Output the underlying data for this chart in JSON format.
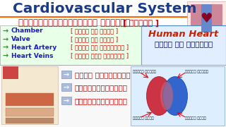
{
  "bg_color": "#f0f0f0",
  "title1": "Cardiovascular System",
  "title1_color": "#1a3a8a",
  "title2": "कार्डियोवैस्कुलर सिस्टम",
  "title2_color": "#cc0000",
  "hindi_tag": "[ हिंदी ]",
  "hindi_tag_color": "#cc0000",
  "items_en": [
    "Chamber",
    "Valve",
    "Heart Artery",
    "Heart Veins"
  ],
  "items_hi": [
    "हृदय के कक्ष ]",
    "हृदय के कपाट ]",
    "हृदय की धामनिया ]",
    "हृदय में सिराये ]"
  ],
  "arrow_color": "#2e8b2e",
  "item_en_color": "#1a1acc",
  "item_hi_color": "#cc0000",
  "left_panel_bg": "#e8ffe8",
  "left_panel_border": "#aaaaaa",
  "right_panel_bg": "#e0eeff",
  "right_panel_border": "#4488cc",
  "human_heart_en": "Human Heart",
  "human_heart_hi": "हृदय की संरचना",
  "human_heart_en_color": "#cc2200",
  "human_heart_hi_color": "#000080",
  "bottom_bg": "#ffffff",
  "bottom_items": [
    "मायो कार्डियम",
    "एंडोकार्डियम",
    "पेरिकार्डियम"
  ],
  "bottom_items_color": "#cc0000",
  "bottom_arrow_color": "#4488cc",
  "top_bg_color": "#ffffff",
  "header_line_color": "#ff4400",
  "anat_labels": [
    "दायां अलिंद",
    "बायां अलिंद",
    "दायां निलय",
    "बायां निलय"
  ]
}
